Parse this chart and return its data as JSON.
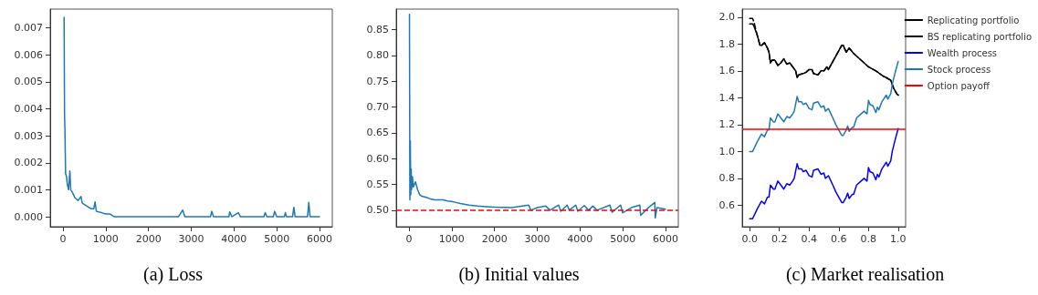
{
  "chart_data": [
    {
      "type": "line",
      "title": "(a) Loss",
      "marker": "none",
      "grid": false,
      "xlim": [
        -300,
        6300
      ],
      "xticks": [
        0,
        1000,
        2000,
        3000,
        4000,
        5000,
        6000
      ],
      "ylim": [
        -0.00037,
        0.0077
      ],
      "yticks": [
        {
          "value": 0,
          "label": "0.000"
        },
        {
          "value": 0.001,
          "label": "0.001"
        },
        {
          "value": 0.002,
          "label": "0.002"
        },
        {
          "value": 0.003,
          "label": "0.003"
        },
        {
          "value": 0.004,
          "label": "0.004"
        },
        {
          "value": 0.005,
          "label": "0.005"
        },
        {
          "value": 0.006,
          "label": "0.006"
        },
        {
          "value": 0.007,
          "label": "0.007"
        }
      ],
      "series": [
        {
          "color": "#1f77b4",
          "x": [
            25,
            35,
            45,
            60,
            80,
            100,
            130,
            160,
            180,
            220,
            280,
            350,
            420,
            450,
            550,
            650,
            720,
            750,
            780,
            900,
            1000,
            1100,
            1200,
            1300,
            2700,
            2800,
            2850,
            3450,
            3480,
            3520,
            3880,
            3900,
            3950,
            4100,
            4150,
            4700,
            4730,
            4770,
            4920,
            4950,
            5000,
            5180,
            5200,
            5230,
            5370,
            5400,
            5430,
            5720,
            5750,
            5780,
            6000
          ],
          "values": [
            0.0074,
            0.0038,
            0.0032,
            0.0016,
            0.0015,
            0.0012,
            0.001,
            0.0017,
            0.001,
            0.0009,
            0.0007,
            0.0006,
            0.00075,
            0.0005,
            0.0004,
            0.0003,
            0.0003,
            0.00055,
            0.0002,
            0.00015,
            0.0001,
            0.0001,
            0,
            0,
            0,
            0.00025,
            0,
            0,
            0.0002,
            0,
            0,
            0.00018,
            0,
            0.00015,
            0,
            0,
            0.00015,
            0,
            0,
            0.0002,
            0,
            0,
            0.00015,
            0,
            0,
            0.00035,
            0,
            0,
            0.00053,
            0,
            0
          ]
        }
      ]
    },
    {
      "type": "line",
      "title": "(b) Initial values",
      "marker": "none",
      "grid": false,
      "xlim": [
        -300,
        6300
      ],
      "xticks": [
        0,
        1000,
        2000,
        3000,
        4000,
        5000,
        6000
      ],
      "ylim": [
        0.468,
        0.89
      ],
      "yticks": [
        {
          "value": 0.5,
          "label": "0.50"
        },
        {
          "value": 0.55,
          "label": "0.55"
        },
        {
          "value": 0.6,
          "label": "0.60"
        },
        {
          "value": 0.65,
          "label": "0.65"
        },
        {
          "value": 0.7,
          "label": "0.70"
        },
        {
          "value": 0.75,
          "label": "0.75"
        },
        {
          "value": 0.8,
          "label": "0.80"
        },
        {
          "value": 0.85,
          "label": "0.85"
        }
      ],
      "ref_lines": [
        {
          "axis": "y",
          "value": 0.5,
          "color": "#ff0000",
          "line_style": "dashed"
        }
      ],
      "series": [
        {
          "color": "#1f77b4",
          "x": [
            10,
            20,
            30,
            40,
            50,
            60,
            80,
            100,
            150,
            200,
            250,
            300,
            400,
            500,
            600,
            700,
            800,
            900,
            1000,
            1100,
            1200,
            1400,
            1600,
            1800,
            2000,
            2400,
            2800,
            2850,
            3000,
            3200,
            3300,
            3500,
            3550,
            3700,
            3750,
            3900,
            3950,
            4100,
            4200,
            4300,
            4400,
            4700,
            4750,
            4950,
            5000,
            5200,
            5400,
            5420,
            5600,
            5750,
            5760,
            5800,
            6000
          ],
          "values": [
            0.88,
            0.52,
            0.635,
            0.53,
            0.58,
            0.54,
            0.565,
            0.545,
            0.555,
            0.54,
            0.53,
            0.527,
            0.525,
            0.522,
            0.52,
            0.52,
            0.52,
            0.518,
            0.517,
            0.515,
            0.513,
            0.51,
            0.508,
            0.507,
            0.506,
            0.505,
            0.51,
            0.5,
            0.505,
            0.508,
            0.5,
            0.51,
            0.498,
            0.51,
            0.5,
            0.51,
            0.498,
            0.509,
            0.5,
            0.508,
            0.5,
            0.51,
            0.496,
            0.51,
            0.495,
            0.505,
            0.51,
            0.49,
            0.505,
            0.515,
            0.485,
            0.505,
            0.502
          ]
        }
      ]
    },
    {
      "type": "line",
      "title": "(c) Market realisation",
      "marker": "none",
      "grid": false,
      "legend": "right",
      "xlim": [
        -0.05,
        1.05
      ],
      "xticks": [
        {
          "value": 0,
          "label": "0.0"
        },
        {
          "value": 0.2,
          "label": "0.2"
        },
        {
          "value": 0.4,
          "label": "0.4"
        },
        {
          "value": 0.6,
          "label": "0.6"
        },
        {
          "value": 0.8,
          "label": "0.8"
        },
        {
          "value": 1,
          "label": "1.0"
        }
      ],
      "ylim": [
        0.44,
        2.06
      ],
      "yticks": [
        {
          "value": 0.6,
          "label": "0.6"
        },
        {
          "value": 0.8,
          "label": "0.8"
        },
        {
          "value": 1,
          "label": "1.0"
        },
        {
          "value": 1.2,
          "label": "1.2"
        },
        {
          "value": 1.4,
          "label": "1.4"
        },
        {
          "value": 1.6,
          "label": "1.6"
        },
        {
          "value": 1.8,
          "label": "1.8"
        },
        {
          "value": 2,
          "label": "2.0"
        }
      ],
      "ref_lines": [
        {
          "axis": "y",
          "value": 1.17,
          "label": "Option payoff",
          "color": "#ff0000",
          "line_style": "solid"
        }
      ],
      "series": [
        {
          "name": "Replicating portfolio",
          "color": "#000000",
          "line_style": "solid",
          "x": [
            0,
            0.02,
            0.03,
            0.05,
            0.07,
            0.08,
            0.1,
            0.12,
            0.13,
            0.14,
            0.15,
            0.17,
            0.19,
            0.21,
            0.23,
            0.25,
            0.27,
            0.29,
            0.31,
            0.32,
            0.33,
            0.36,
            0.38,
            0.4,
            0.42,
            0.43,
            0.46,
            0.48,
            0.5,
            0.52,
            0.53,
            0.56,
            0.58,
            0.6,
            0.62,
            0.63,
            0.65,
            0.67,
            0.7,
            0.75,
            0.8,
            0.85,
            0.9,
            0.92,
            0.95,
            0.97,
            0.99,
            1
          ],
          "values": [
            1.95,
            1.95,
            1.93,
            1.87,
            1.79,
            1.79,
            1.81,
            1.77,
            1.74,
            1.66,
            1.68,
            1.68,
            1.64,
            1.66,
            1.69,
            1.65,
            1.66,
            1.63,
            1.6,
            1.55,
            1.57,
            1.58,
            1.59,
            1.61,
            1.61,
            1.58,
            1.57,
            1.6,
            1.6,
            1.63,
            1.61,
            1.67,
            1.71,
            1.75,
            1.79,
            1.79,
            1.74,
            1.77,
            1.73,
            1.68,
            1.63,
            1.6,
            1.56,
            1.55,
            1.53,
            1.47,
            1.43,
            1.42
          ]
        },
        {
          "name": "BS replicating portfolio",
          "color": "#000000",
          "line_style": "dashed",
          "x": [
            0,
            0.02,
            0.03,
            0.05,
            0.07,
            0.08,
            0.1,
            0.12,
            0.13,
            0.14,
            0.15,
            0.17,
            0.19,
            0.21,
            0.23,
            0.25,
            0.27,
            0.29,
            0.31,
            0.32,
            0.33,
            0.36,
            0.38,
            0.4,
            0.42,
            0.43,
            0.46,
            0.48,
            0.5,
            0.52,
            0.53,
            0.56,
            0.58,
            0.6,
            0.62,
            0.63,
            0.65,
            0.67,
            0.7,
            0.75,
            0.8,
            0.85,
            0.9,
            0.92,
            0.95,
            0.97,
            0.99,
            1
          ],
          "values": [
            1.99,
            1.99,
            1.96,
            1.87,
            1.79,
            1.79,
            1.81,
            1.77,
            1.74,
            1.66,
            1.68,
            1.68,
            1.64,
            1.66,
            1.69,
            1.65,
            1.66,
            1.63,
            1.6,
            1.55,
            1.57,
            1.58,
            1.59,
            1.61,
            1.61,
            1.58,
            1.57,
            1.6,
            1.6,
            1.63,
            1.61,
            1.67,
            1.71,
            1.75,
            1.79,
            1.79,
            1.74,
            1.77,
            1.73,
            1.68,
            1.63,
            1.6,
            1.56,
            1.55,
            1.53,
            1.47,
            1.43,
            1.42
          ]
        },
        {
          "name": "Wealth process",
          "color": "#0000ff",
          "line_style": "solid",
          "x": [
            0,
            0.02,
            0.05,
            0.08,
            0.1,
            0.12,
            0.13,
            0.14,
            0.16,
            0.17,
            0.19,
            0.21,
            0.23,
            0.25,
            0.27,
            0.29,
            0.3,
            0.32,
            0.33,
            0.35,
            0.36,
            0.38,
            0.4,
            0.42,
            0.43,
            0.46,
            0.48,
            0.5,
            0.51,
            0.53,
            0.56,
            0.58,
            0.6,
            0.62,
            0.63,
            0.65,
            0.66,
            0.67,
            0.69,
            0.7,
            0.72,
            0.75,
            0.77,
            0.79,
            0.8,
            0.81,
            0.83,
            0.85,
            0.86,
            0.87,
            0.89,
            0.92,
            0.93,
            0.95,
            0.96,
            0.98,
            1
          ],
          "values": [
            0.5,
            0.5,
            0.57,
            0.63,
            0.61,
            0.66,
            0.66,
            0.75,
            0.72,
            0.72,
            0.78,
            0.75,
            0.72,
            0.76,
            0.75,
            0.78,
            0.8,
            0.91,
            0.87,
            0.87,
            0.85,
            0.86,
            0.82,
            0.81,
            0.86,
            0.87,
            0.83,
            0.84,
            0.8,
            0.82,
            0.75,
            0.7,
            0.66,
            0.62,
            0.62,
            0.66,
            0.69,
            0.65,
            0.68,
            0.68,
            0.75,
            0.78,
            0.8,
            0.78,
            0.88,
            0.85,
            0.84,
            0.79,
            0.83,
            0.81,
            0.87,
            0.92,
            0.89,
            0.93,
            1.0,
            1.09,
            1.17
          ]
        },
        {
          "name": "Stock process",
          "color": "#1f77b4",
          "line_style": "solid",
          "x": [
            0,
            0.02,
            0.05,
            0.08,
            0.1,
            0.12,
            0.13,
            0.14,
            0.16,
            0.17,
            0.19,
            0.21,
            0.23,
            0.25,
            0.27,
            0.29,
            0.3,
            0.32,
            0.33,
            0.35,
            0.36,
            0.38,
            0.4,
            0.42,
            0.43,
            0.46,
            0.48,
            0.5,
            0.51,
            0.53,
            0.56,
            0.58,
            0.6,
            0.62,
            0.63,
            0.65,
            0.66,
            0.67,
            0.69,
            0.7,
            0.72,
            0.75,
            0.77,
            0.79,
            0.8,
            0.81,
            0.83,
            0.85,
            0.86,
            0.87,
            0.89,
            0.92,
            0.93,
            0.95,
            0.96,
            0.98,
            1
          ],
          "values": [
            1.0,
            1.0,
            1.07,
            1.13,
            1.11,
            1.16,
            1.16,
            1.25,
            1.22,
            1.22,
            1.28,
            1.25,
            1.22,
            1.26,
            1.25,
            1.28,
            1.3,
            1.41,
            1.37,
            1.37,
            1.35,
            1.36,
            1.32,
            1.31,
            1.36,
            1.37,
            1.33,
            1.34,
            1.3,
            1.32,
            1.25,
            1.2,
            1.16,
            1.12,
            1.12,
            1.16,
            1.19,
            1.15,
            1.18,
            1.18,
            1.25,
            1.28,
            1.3,
            1.28,
            1.38,
            1.35,
            1.34,
            1.29,
            1.33,
            1.31,
            1.37,
            1.42,
            1.39,
            1.43,
            1.5,
            1.59,
            1.67
          ]
        }
      ]
    }
  ]
}
